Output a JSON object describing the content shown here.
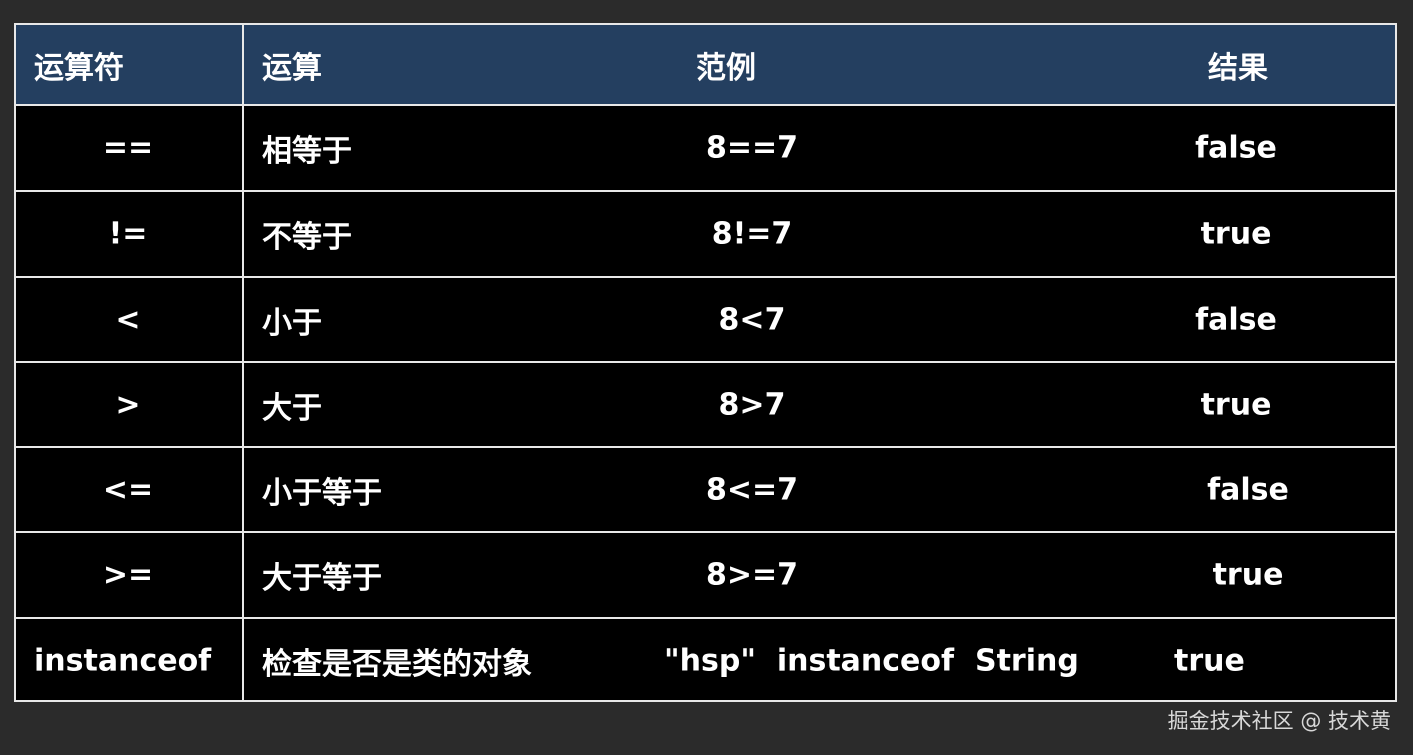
{
  "table": {
    "headers": [
      "运算符",
      "运算",
      "范例",
      "结果"
    ],
    "rows": [
      [
        "==",
        "相等于",
        "8==7",
        "false"
      ],
      [
        "!=",
        "不等于",
        "8!=7",
        "true"
      ],
      [
        "<",
        "小于",
        "8<7",
        "false"
      ],
      [
        ">",
        "大于",
        "8>7",
        "true"
      ],
      [
        "<=",
        "小于等于",
        "8<=7",
        "false"
      ],
      [
        ">=",
        "大于等于",
        "8>=7",
        "true"
      ],
      [
        "instanceof",
        "检查是否是类的对象",
        "\"hsp\"  instanceof  String",
        "true"
      ]
    ]
  },
  "colors": {
    "header_bg": "#243f60",
    "body_bg": "#000000",
    "border": "#e8e8e8",
    "page_bg": "#2b2b2b"
  },
  "watermark": "掘金技术社区 @ 技术黄"
}
